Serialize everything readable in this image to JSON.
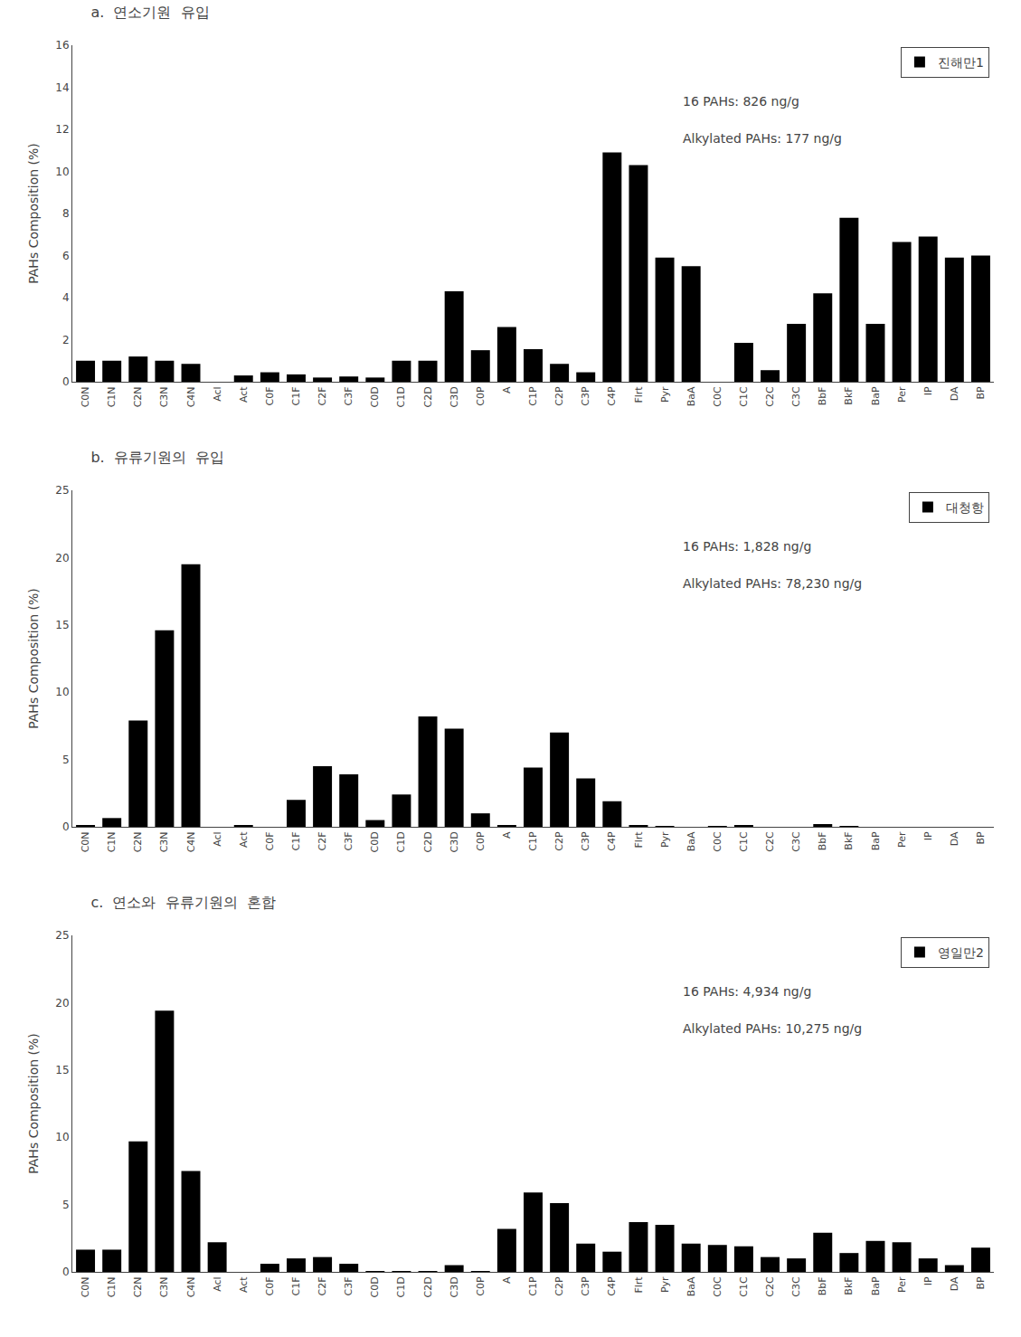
{
  "chart_data": [
    {
      "type": "bar",
      "title": "a.  연소기원  유입",
      "categories": [
        "C0N",
        "C1N",
        "C2N",
        "C3N",
        "C4N",
        "Acl",
        "Act",
        "C0F",
        "C1F",
        "C2F",
        "C3F",
        "C0D",
        "C1D",
        "C2D",
        "C3D",
        "C0P",
        "A",
        "C1P",
        "C2P",
        "C3P",
        "C4P",
        "Flrt",
        "Pyr",
        "BaA",
        "C0C",
        "C1C",
        "C2C",
        "C3C",
        "BbF",
        "BkF",
        "BaP",
        "Per",
        "IP",
        "DA",
        "BP"
      ],
      "series": [
        {
          "name": "진해만1",
          "color": "#000000",
          "values": [
            1.0,
            1.0,
            1.2,
            1.0,
            0.85,
            0.0,
            0.3,
            0.45,
            0.35,
            0.2,
            0.25,
            0.2,
            1.0,
            1.0,
            4.3,
            1.5,
            2.6,
            1.55,
            0.85,
            0.45,
            10.9,
            10.3,
            5.9,
            5.5,
            0.0,
            1.85,
            0.55,
            2.75,
            4.2,
            7.8,
            2.75,
            6.65,
            6.9,
            5.9,
            6.0
          ]
        }
      ],
      "ylabel": "PAHs Composition (%)",
      "ylim": [
        0,
        16
      ],
      "yticks": [
        0,
        2,
        4,
        6,
        8,
        10,
        12,
        14,
        16
      ],
      "annotations": [
        "16 PAHs: 826 ng/g",
        "Alkylated PAHs: 177 ng/g"
      ],
      "legend": "upper right",
      "grid": false
    },
    {
      "type": "bar",
      "title": "b.  유류기원의  유입",
      "categories": [
        "C0N",
        "C1N",
        "C2N",
        "C3N",
        "C4N",
        "Acl",
        "Act",
        "C0F",
        "C1F",
        "C2F",
        "C3F",
        "C0D",
        "C1D",
        "C2D",
        "C3D",
        "C0P",
        "A",
        "C1P",
        "C2P",
        "C3P",
        "C4P",
        "Flrt",
        "Pyr",
        "BaA",
        "C0C",
        "C1C",
        "C2C",
        "C3C",
        "BbF",
        "BkF",
        "BaP",
        "Per",
        "IP",
        "DA",
        "BP"
      ],
      "series": [
        {
          "name": "대청항",
          "color": "#000000",
          "values": [
            0.1,
            0.65,
            7.9,
            14.6,
            19.5,
            0.0,
            0.1,
            0.0,
            2.0,
            4.5,
            3.9,
            0.5,
            2.4,
            8.2,
            7.3,
            1.0,
            0.1,
            4.4,
            7.0,
            3.6,
            1.9,
            0.1,
            0.05,
            0.0,
            0.05,
            0.1,
            0.0,
            0.0,
            0.2,
            0.05,
            0.0,
            0.0,
            0.0,
            0.0,
            0.0
          ]
        }
      ],
      "ylabel": "PAHs Composition (%)",
      "ylim": [
        0,
        25
      ],
      "yticks": [
        0,
        5,
        10,
        15,
        20,
        25
      ],
      "annotations": [
        "16 PAHs: 1,828 ng/g",
        "Alkylated PAHs: 78,230 ng/g"
      ],
      "legend": "upper right",
      "grid": false
    },
    {
      "type": "bar",
      "title": "c.  연소와  유류기원의  혼합",
      "categories": [
        "C0N",
        "C1N",
        "C2N",
        "C3N",
        "C4N",
        "Acl",
        "Act",
        "C0F",
        "C1F",
        "C2F",
        "C3F",
        "C0D",
        "C1D",
        "C2D",
        "C3D",
        "C0P",
        "A",
        "C1P",
        "C2P",
        "C3P",
        "C4P",
        "Flrt",
        "Pyr",
        "BaA",
        "C0C",
        "C1C",
        "C2C",
        "C3C",
        "BbF",
        "BkF",
        "BaP",
        "Per",
        "IP",
        "DA",
        "BP"
      ],
      "series": [
        {
          "name": "영일만2",
          "color": "#000000",
          "values": [
            1.65,
            1.65,
            9.7,
            19.4,
            7.5,
            2.2,
            0.0,
            0.6,
            1.0,
            1.1,
            0.6,
            0.05,
            0.05,
            0.05,
            0.5,
            0.05,
            3.2,
            5.9,
            5.1,
            2.1,
            1.5,
            3.7,
            3.5,
            2.1,
            2.0,
            1.9,
            1.1,
            1.0,
            2.9,
            1.4,
            2.3,
            2.2,
            1.0,
            0.5,
            1.8
          ]
        }
      ],
      "ylabel": "PAHs Composition (%)",
      "ylim": [
        0,
        25
      ],
      "yticks": [
        0,
        5,
        10,
        15,
        20,
        25
      ],
      "annotations": [
        "16 PAHs: 4,934 ng/g",
        "Alkylated PAHs: 10,275 ng/g"
      ],
      "legend": "upper right",
      "grid": false
    }
  ]
}
